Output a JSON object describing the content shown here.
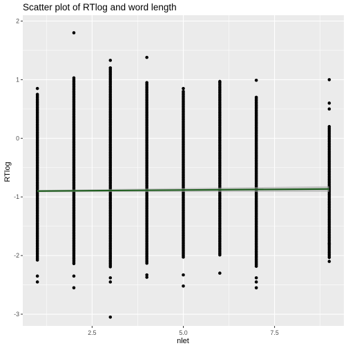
{
  "chart_data": {
    "type": "scatter",
    "title": "Scatter plot of RTlog and word length",
    "xlabel": "nlet",
    "ylabel": "RTlog",
    "xlim": [
      0.6,
      9.4
    ],
    "ylim": [
      -3.2,
      2.1
    ],
    "x_ticks": [
      2.5,
      5.0,
      7.5
    ],
    "x_tick_labels": [
      "2.5",
      "5.0",
      "7.5"
    ],
    "y_ticks": [
      2,
      1,
      0,
      -1,
      -2,
      -3
    ],
    "y_tick_labels": [
      "2",
      "1",
      "0",
      "-1",
      "-2",
      "-3"
    ],
    "grid": true,
    "colors": {
      "panel": "#ebebeb",
      "grid": "#ffffff",
      "points": "#000000",
      "fit_line": "#1f5e1f",
      "confidence_band": "#a6a6a6"
    },
    "strips": [
      {
        "x": 1,
        "dense_min": -2.1,
        "dense_max": 0.75,
        "outliers": [
          0.85,
          -2.35,
          -2.45
        ]
      },
      {
        "x": 2,
        "dense_min": -2.15,
        "dense_max": 1.0,
        "outliers": [
          1.8,
          1.03,
          -2.35,
          -2.55
        ]
      },
      {
        "x": 3,
        "dense_min": -2.2,
        "dense_max": 1.2,
        "outliers": [
          1.33,
          1.2,
          -2.38,
          -2.45,
          -3.05
        ]
      },
      {
        "x": 4,
        "dense_min": -2.15,
        "dense_max": 0.95,
        "outliers": [
          1.38,
          -2.33,
          -2.37
        ]
      },
      {
        "x": 5,
        "dense_min": -2.05,
        "dense_max": 0.8,
        "outliers": [
          0.85,
          -2.33,
          -2.52
        ]
      },
      {
        "x": 6,
        "dense_min": -2.0,
        "dense_max": 0.95,
        "outliers": [
          0.97,
          -2.3
        ]
      },
      {
        "x": 7,
        "dense_min": -2.2,
        "dense_max": 0.7,
        "outliers": [
          0.99,
          -2.38,
          -2.45,
          -2.55
        ]
      },
      {
        "x": 9,
        "dense_min": -2.05,
        "dense_max": 0.2,
        "outliers": [
          1.0,
          0.6,
          0.5,
          -1.8,
          -2.1
        ]
      }
    ],
    "regression_line": {
      "x": [
        1,
        9
      ],
      "y": [
        -0.9,
        -0.865
      ]
    }
  }
}
